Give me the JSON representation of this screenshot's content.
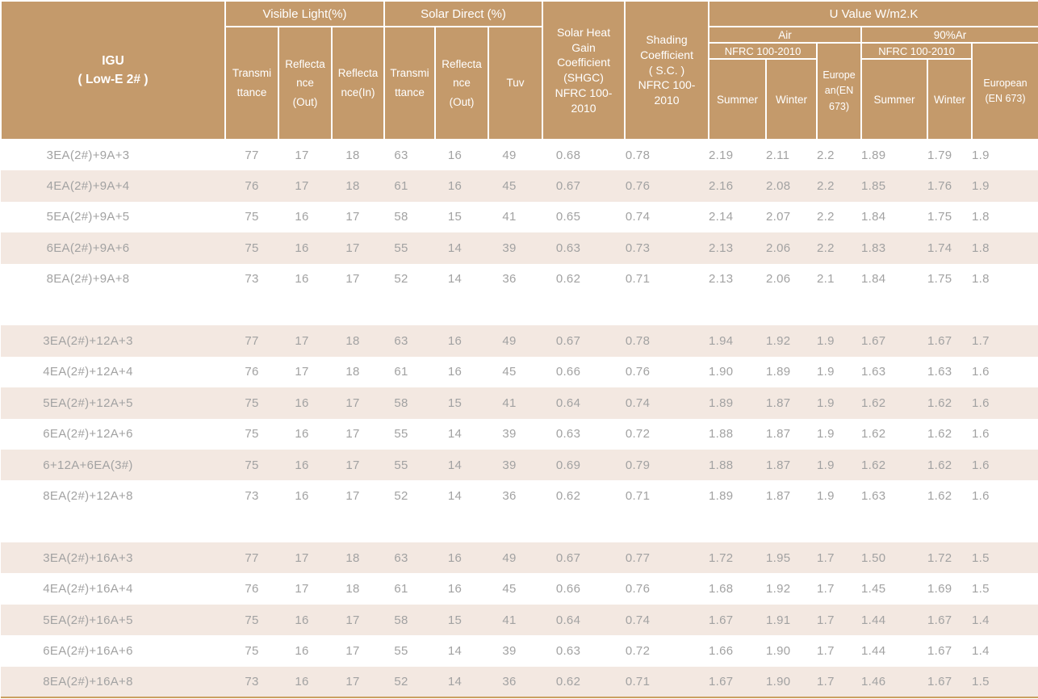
{
  "colors": {
    "header_background": "#c49a6b",
    "header_text": "#ffffff",
    "shaded_row_background": "#f3e8e1",
    "data_text": "#a2a2a2",
    "bottom_rule": "#c9a061"
  },
  "header": {
    "igu_title": "IGU\n( Low-E 2# )",
    "visible_light": {
      "label": "Visible Light(%)",
      "transmittance": "Transmi\nttance",
      "reflectance_out": "Reflecta\nnce\n(Out)",
      "reflectance_in": "Reflecta\nnce(In)"
    },
    "solar_direct": {
      "label": "Solar  Direct (%)",
      "transmittance": "Transmi\nttance",
      "reflectance_out": "Reflecta\nnce\n(Out)",
      "tuv": "Tuv"
    },
    "shgc": "Solar Heat\nGain\nCoefficient\n(SHGC)\nNFRC 100-\n2010",
    "shading": "Shading\nCoefficient\n( S.C. )\nNFRC 100-\n2010",
    "u_value": {
      "label": "U Value W/m2.K",
      "air": {
        "label": "Air",
        "nfrc": "NFRC 100-2010",
        "summer": "Summer",
        "winter": "Winter",
        "european": "Europe\nan(EN\n673)"
      },
      "argon": {
        "label": "90%Ar",
        "nfrc": "NFRC 100-2010",
        "summer": "Summer",
        "winter": "Winter",
        "european": "European\n(EN 673)"
      }
    }
  },
  "body": {
    "rows": [
      {
        "igu": "3EA(2#)+9A+3",
        "shaded": false,
        "values": [
          "77",
          "17",
          "18",
          "63",
          "16",
          "49",
          "0.68",
          "0.78",
          "2.19",
          "2.11",
          "2.2",
          "1.89",
          "1.79",
          "1.9"
        ]
      },
      {
        "igu": "4EA(2#)+9A+4",
        "shaded": true,
        "values": [
          "76",
          "17",
          "18",
          "61",
          "16",
          "45",
          "0.67",
          "0.76",
          "2.16",
          "2.08",
          "2.2",
          "1.85",
          "1.76",
          "1.9"
        ]
      },
      {
        "igu": "5EA(2#)+9A+5",
        "shaded": false,
        "values": [
          "75",
          "16",
          "17",
          "58",
          "15",
          "41",
          "0.65",
          "0.74",
          "2.14",
          "2.07",
          "2.2",
          "1.84",
          "1.75",
          "1.8"
        ]
      },
      {
        "igu": "6EA(2#)+9A+6",
        "shaded": true,
        "values": [
          "75",
          "16",
          "17",
          "55",
          "14",
          "39",
          "0.63",
          "0.73",
          "2.13",
          "2.06",
          "2.2",
          "1.83",
          "1.74",
          "1.8"
        ]
      },
      {
        "igu": "8EA(2#)+9A+8",
        "shaded": false,
        "values": [
          "73",
          "16",
          "17",
          "52",
          "14",
          "36",
          "0.62",
          "0.71",
          "2.13",
          "2.06",
          "2.1",
          "1.84",
          "1.75",
          "1.8"
        ]
      },
      {
        "spacer": true
      },
      {
        "igu": "3EA(2#)+12A+3",
        "shaded": true,
        "values": [
          "77",
          "17",
          "18",
          "63",
          "16",
          "49",
          "0.67",
          "0.78",
          "1.94",
          "1.92",
          "1.9",
          "1.67",
          "1.67",
          "1.7"
        ]
      },
      {
        "igu": "4EA(2#)+12A+4",
        "shaded": false,
        "values": [
          "76",
          "17",
          "18",
          "61",
          "16",
          "45",
          "0.66",
          "0.76",
          "1.90",
          "1.89",
          "1.9",
          "1.63",
          "1.63",
          "1.6"
        ]
      },
      {
        "igu": "5EA(2#)+12A+5",
        "shaded": true,
        "values": [
          "75",
          "16",
          "17",
          "58",
          "15",
          "41",
          "0.64",
          "0.74",
          "1.89",
          "1.87",
          "1.9",
          "1.62",
          "1.62",
          "1.6"
        ]
      },
      {
        "igu": "6EA(2#)+12A+6",
        "shaded": false,
        "values": [
          "75",
          "16",
          "17",
          "55",
          "14",
          "39",
          "0.63",
          "0.72",
          "1.88",
          "1.87",
          "1.9",
          "1.62",
          "1.62",
          "1.6"
        ]
      },
      {
        "igu": "6+12A+6EA(3#)",
        "shaded": true,
        "values": [
          "75",
          "16",
          "17",
          "55",
          "14",
          "39",
          "0.69",
          "0.79",
          "1.88",
          "1.87",
          "1.9",
          "1.62",
          "1.62",
          "1.6"
        ]
      },
      {
        "igu": "8EA(2#)+12A+8",
        "shaded": false,
        "values": [
          "73",
          "16",
          "17",
          "52",
          "14",
          "36",
          "0.62",
          "0.71",
          "1.89",
          "1.87",
          "1.9",
          "1.63",
          "1.62",
          "1.6"
        ]
      },
      {
        "spacer": true
      },
      {
        "igu": "3EA(2#)+16A+3",
        "shaded": true,
        "values": [
          "77",
          "17",
          "18",
          "63",
          "16",
          "49",
          "0.67",
          "0.77",
          "1.72",
          "1.95",
          "1.7",
          "1.50",
          "1.72",
          "1.5"
        ]
      },
      {
        "igu": "4EA(2#)+16A+4",
        "shaded": false,
        "values": [
          "76",
          "17",
          "18",
          "61",
          "16",
          "45",
          "0.66",
          "0.76",
          "1.68",
          "1.92",
          "1.7",
          "1.45",
          "1.69",
          "1.5"
        ]
      },
      {
        "igu": "5EA(2#)+16A+5",
        "shaded": true,
        "values": [
          "75",
          "16",
          "17",
          "58",
          "15",
          "41",
          "0.64",
          "0.74",
          "1.67",
          "1.91",
          "1.7",
          "1.44",
          "1.67",
          "1.4"
        ]
      },
      {
        "igu": "6EA(2#)+16A+6",
        "shaded": false,
        "values": [
          "75",
          "16",
          "17",
          "55",
          "14",
          "39",
          "0.63",
          "0.72",
          "1.66",
          "1.90",
          "1.7",
          "1.44",
          "1.67",
          "1.4"
        ]
      },
      {
        "igu": "8EA(2#)+16A+8",
        "shaded": true,
        "values": [
          "73",
          "16",
          "17",
          "52",
          "14",
          "36",
          "0.62",
          "0.71",
          "1.67",
          "1.90",
          "1.7",
          "1.46",
          "1.67",
          "1.5"
        ]
      }
    ]
  }
}
